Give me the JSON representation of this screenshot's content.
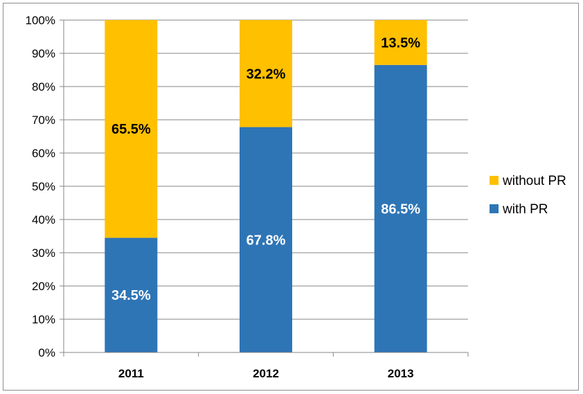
{
  "chart_data": {
    "type": "bar",
    "stacked": true,
    "categories": [
      "2011",
      "2012",
      "2013"
    ],
    "series": [
      {
        "name": "with PR",
        "values": [
          34.5,
          67.8,
          86.5
        ],
        "labels": [
          "34.5%",
          "67.8%",
          "86.5%"
        ],
        "color": "#2e75b6",
        "label_color": "#ffffff"
      },
      {
        "name": "without PR",
        "values": [
          65.5,
          32.2,
          13.5
        ],
        "labels": [
          "65.5%",
          "32.2%",
          "13.5%"
        ],
        "color": "#ffc000",
        "label_color": "#000000"
      }
    ],
    "y_ticks": [
      "0%",
      "10%",
      "20%",
      "30%",
      "40%",
      "50%",
      "60%",
      "70%",
      "80%",
      "90%",
      "100%"
    ],
    "ylim": [
      0,
      100
    ],
    "grid": true,
    "legend_position": "right",
    "legend_order": [
      "without PR",
      "with PR"
    ],
    "title": "",
    "xlabel": "",
    "ylabel": ""
  }
}
